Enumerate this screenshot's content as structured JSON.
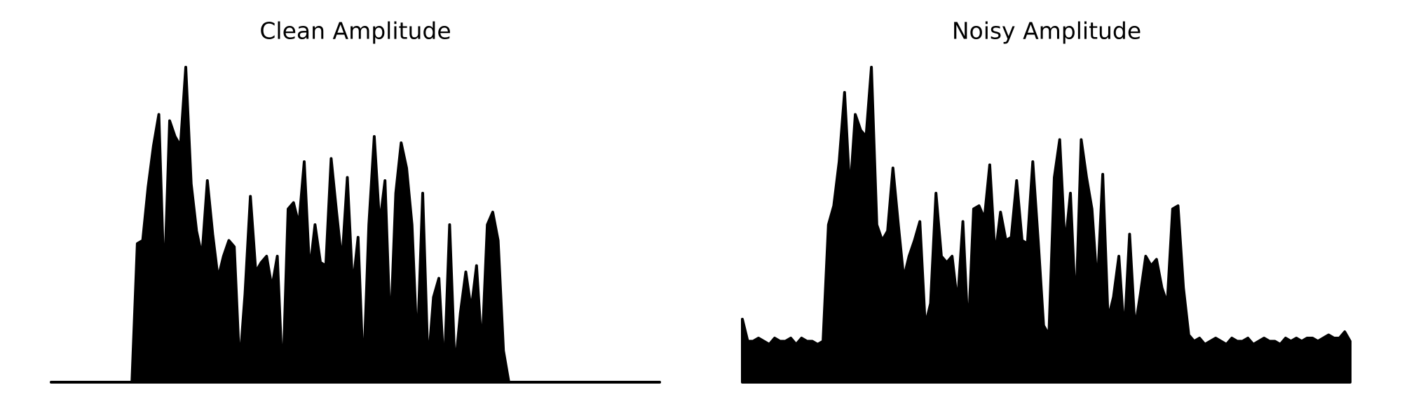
{
  "chart_data": [
    {
      "type": "area",
      "title": "Clean Amplitude",
      "color": "#000000",
      "ylim": [
        0,
        1
      ],
      "values": [
        0,
        0,
        0,
        0,
        0,
        0,
        0,
        0,
        0,
        0,
        0,
        0,
        0,
        0,
        0,
        0,
        0.44,
        0.45,
        0.62,
        0.75,
        0.85,
        0.3,
        0.83,
        0.78,
        0.75,
        1.0,
        0.63,
        0.48,
        0.4,
        0.64,
        0.47,
        0.33,
        0.4,
        0.45,
        0.43,
        0.05,
        0.28,
        0.59,
        0.35,
        0.38,
        0.4,
        0.3,
        0.4,
        0.0,
        0.55,
        0.57,
        0.5,
        0.7,
        0.35,
        0.5,
        0.38,
        0.37,
        0.71,
        0.54,
        0.38,
        0.65,
        0.3,
        0.46,
        0.02,
        0.5,
        0.78,
        0.5,
        0.64,
        0.15,
        0.6,
        0.76,
        0.68,
        0.5,
        0.1,
        0.6,
        0.05,
        0.27,
        0.33,
        0.03,
        0.5,
        0.04,
        0.22,
        0.35,
        0.23,
        0.37,
        0.1,
        0.5,
        0.54,
        0.45,
        0.1,
        0.0,
        0,
        0,
        0,
        0,
        0,
        0,
        0,
        0,
        0,
        0,
        0,
        0,
        0,
        0,
        0,
        0,
        0,
        0,
        0,
        0,
        0,
        0,
        0,
        0,
        0,
        0,
        0,
        0
      ]
    },
    {
      "type": "area",
      "title": "Noisy Amplitude",
      "color": "#000000",
      "ylim": [
        0,
        1
      ],
      "values": [
        0.2,
        0.13,
        0.13,
        0.14,
        0.13,
        0.12,
        0.14,
        0.13,
        0.13,
        0.14,
        0.12,
        0.14,
        0.13,
        0.13,
        0.12,
        0.13,
        0.5,
        0.56,
        0.7,
        0.92,
        0.6,
        0.85,
        0.8,
        0.78,
        1.0,
        0.5,
        0.45,
        0.48,
        0.68,
        0.5,
        0.33,
        0.4,
        0.45,
        0.51,
        0.18,
        0.25,
        0.6,
        0.4,
        0.38,
        0.4,
        0.25,
        0.51,
        0.15,
        0.55,
        0.56,
        0.52,
        0.69,
        0.4,
        0.54,
        0.45,
        0.46,
        0.64,
        0.45,
        0.44,
        0.7,
        0.45,
        0.18,
        0.15,
        0.65,
        0.77,
        0.43,
        0.6,
        0.22,
        0.77,
        0.65,
        0.55,
        0.3,
        0.66,
        0.2,
        0.27,
        0.4,
        0.15,
        0.47,
        0.17,
        0.28,
        0.4,
        0.37,
        0.39,
        0.3,
        0.25,
        0.55,
        0.56,
        0.3,
        0.15,
        0.13,
        0.14,
        0.12,
        0.13,
        0.14,
        0.13,
        0.12,
        0.14,
        0.13,
        0.13,
        0.14,
        0.12,
        0.13,
        0.14,
        0.13,
        0.13,
        0.12,
        0.14,
        0.13,
        0.14,
        0.13,
        0.14,
        0.14,
        0.13,
        0.14,
        0.15,
        0.14,
        0.14,
        0.16,
        0.13
      ]
    }
  ]
}
